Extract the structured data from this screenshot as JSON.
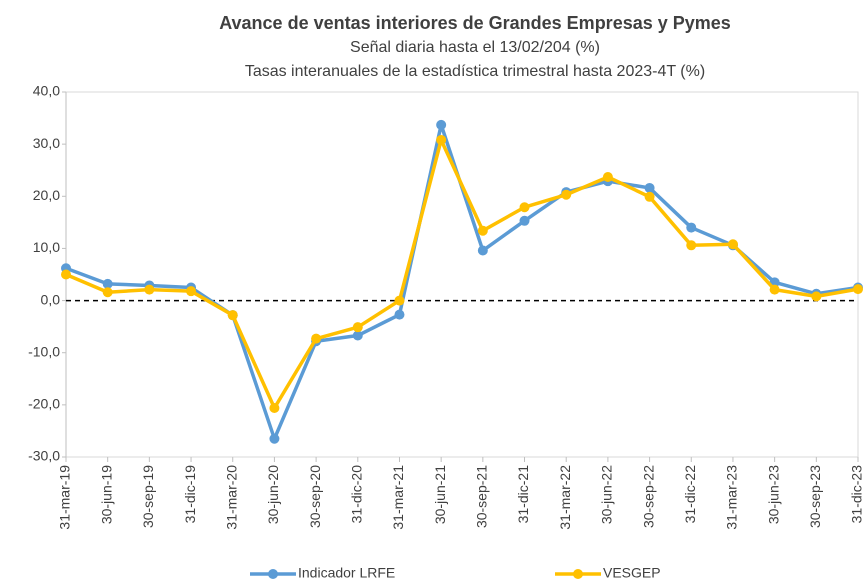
{
  "chart_data": {
    "type": "line",
    "title": "Avance de ventas interiores de Grandes Empresas y Pymes",
    "subtitles": [
      "Señal diaria hasta el 13/02/204 (%)",
      "Tasas interanuales de la estadística trimestral hasta 2023-4T (%)"
    ],
    "categories": [
      "31-mar-19",
      "30-jun-19",
      "30-sep-19",
      "31-dic-19",
      "31-mar-20",
      "30-jun-20",
      "30-sep-20",
      "31-dic-20",
      "31-mar-21",
      "30-jun-21",
      "30-sep-21",
      "31-dic-21",
      "31-mar-22",
      "30-jun-22",
      "30-sep-22",
      "31-dic-22",
      "31-mar-23",
      "30-jun-23",
      "30-sep-23",
      "31-dic-23"
    ],
    "series": [
      {
        "name": "Indicador LRFE",
        "color": "#5b9bd5",
        "values": [
          6.2,
          3.2,
          2.9,
          2.5,
          -2.8,
          -26.5,
          -7.8,
          -6.7,
          -2.7,
          33.7,
          9.6,
          15.3,
          20.8,
          22.9,
          21.6,
          14.0,
          10.6,
          3.5,
          1.3,
          2.5
        ]
      },
      {
        "name": "VESGEP",
        "color": "#ffc000",
        "values": [
          5.0,
          1.6,
          2.1,
          1.8,
          -2.8,
          -20.6,
          -7.3,
          -5.1,
          0.0,
          30.8,
          13.4,
          17.9,
          20.3,
          23.7,
          19.9,
          10.6,
          10.8,
          2.1,
          0.8,
          2.2
        ]
      }
    ],
    "ylim": [
      -30,
      40
    ],
    "yticks": [
      {
        "value": -30,
        "label": "-30,0"
      },
      {
        "value": -20,
        "label": "-20,0"
      },
      {
        "value": -10,
        "label": "-10,0"
      },
      {
        "value": 0,
        "label": "0,0"
      },
      {
        "value": 10,
        "label": "10,0"
      },
      {
        "value": 20,
        "label": "20,0"
      },
      {
        "value": 30,
        "label": "30,0"
      },
      {
        "value": 40,
        "label": "40,0"
      }
    ],
    "legend": "bottom"
  }
}
